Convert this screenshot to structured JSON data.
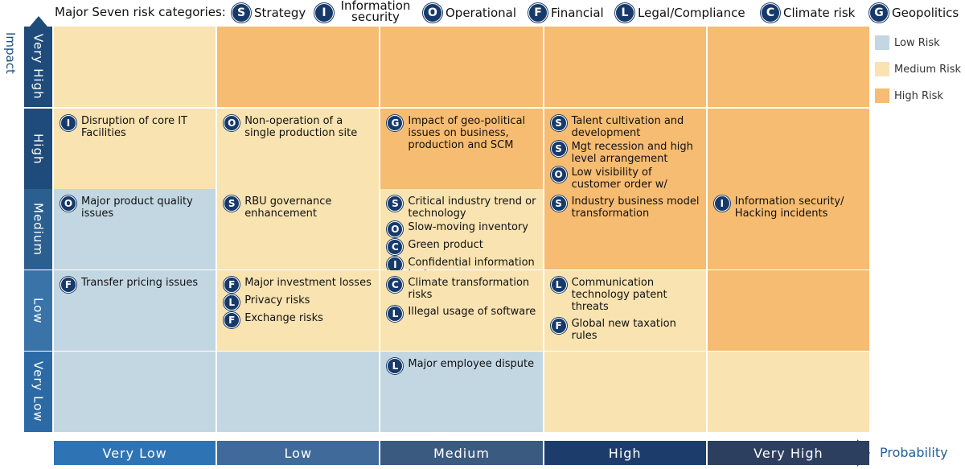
{
  "header": {
    "title": "Major Seven risk categories:",
    "categories": [
      {
        "icon": "S",
        "label": "Strategy"
      },
      {
        "icon": "I",
        "label": "Information security"
      },
      {
        "icon": "O",
        "label": "Operational"
      },
      {
        "icon": "F",
        "label": "Financial"
      },
      {
        "icon": "L",
        "label": "Legal/Compliance"
      },
      {
        "icon": "C",
        "label": "Climate risk"
      },
      {
        "icon": "G",
        "label": "Geopolitics"
      }
    ]
  },
  "y_axis": {
    "label": "Impact",
    "levels": [
      "Very High",
      "High",
      "Medium",
      "Low",
      "Very Low"
    ]
  },
  "x_axis": {
    "label": "Probability",
    "levels": [
      "Very Low",
      "Low",
      "Medium",
      "High",
      "Very High"
    ]
  },
  "legend": [
    {
      "label": "Low Risk",
      "color": "#c3d7e3"
    },
    {
      "label": "Medium Risk",
      "color": "#f8e3b1"
    },
    {
      "label": "High Risk",
      "color": "#f6bc72"
    }
  ],
  "grid": {
    "rows": [
      [
        {
          "color": "#f8e3b1",
          "items": []
        },
        {
          "color": "#f6bc72",
          "items": []
        },
        {
          "color": "#f6bc72",
          "items": []
        },
        {
          "color": "#f6bc72",
          "items": []
        },
        {
          "color": "#f6bc72",
          "items": []
        }
      ],
      [
        {
          "color": "#f8e3b1",
          "items": [
            {
              "icon": "I",
              "text": "Disruption of core IT Facilities"
            }
          ]
        },
        {
          "color": "#f8e3b1",
          "items": [
            {
              "icon": "O",
              "text": "Non-operation of a single production site"
            }
          ]
        },
        {
          "color": "#f6bc72",
          "items": [
            {
              "icon": "G",
              "text": "Impact of geo-political issues on business, production and SCM"
            }
          ]
        },
        {
          "color": "#f6bc72",
          "items": [
            {
              "icon": "S",
              "text": "Talent cultivation and development"
            },
            {
              "icon": "S",
              "text": "Mgt recession and high level arrangement"
            },
            {
              "icon": "O",
              "text": "Low visibility of customer order w/ demand drop"
            }
          ]
        },
        {
          "color": "#f6bc72",
          "items": []
        }
      ],
      [
        {
          "color": "#c3d7e3",
          "items": [
            {
              "icon": "O",
              "text": "Major product quality issues"
            }
          ]
        },
        {
          "color": "#f8e3b1",
          "items": [
            {
              "icon": "S",
              "text": "RBU governance enhancement"
            }
          ]
        },
        {
          "color": "#f8e3b1",
          "items": [
            {
              "icon": "S",
              "text": "Critical industry trend or technology"
            },
            {
              "icon": "O",
              "text": "Slow-moving inventory"
            },
            {
              "icon": "C",
              "text": "Green product"
            },
            {
              "icon": "I",
              "text": "Confidential information leakage"
            }
          ]
        },
        {
          "color": "#f6bc72",
          "items": [
            {
              "icon": "S",
              "text": "Industry business model transformation"
            }
          ]
        },
        {
          "color": "#f6bc72",
          "items": [
            {
              "icon": "I",
              "text": "Information security/ Hacking incidents"
            }
          ]
        }
      ],
      [
        {
          "color": "#c3d7e3",
          "items": [
            {
              "icon": "F",
              "text": "Transfer pricing issues"
            }
          ]
        },
        {
          "color": "#f8e3b1",
          "items": [
            {
              "icon": "F",
              "text": "Major investment losses"
            },
            {
              "icon": "L",
              "text": "Privacy risks"
            },
            {
              "icon": "F",
              "text": "Exchange risks"
            }
          ]
        },
        {
          "color": "#f8e3b1",
          "items": [
            {
              "icon": "C",
              "text": "Climate transformation risks"
            },
            {
              "icon": "L",
              "text": "Illegal usage of software"
            }
          ]
        },
        {
          "color": "#f8e3b1",
          "items": [
            {
              "icon": "L",
              "text": "Communication technology patent threats"
            },
            {
              "icon": "F",
              "text": "Global new taxation rules"
            }
          ]
        },
        {
          "color": "#f6bc72",
          "items": []
        }
      ],
      [
        {
          "color": "#c3d7e3",
          "items": []
        },
        {
          "color": "#c3d7e3",
          "items": []
        },
        {
          "color": "#c3d7e3",
          "items": [
            {
              "icon": "L",
              "text": "Major employee dispute"
            }
          ]
        },
        {
          "color": "#f8e3b1",
          "items": []
        },
        {
          "color": "#f8e3b1",
          "items": []
        }
      ]
    ]
  }
}
